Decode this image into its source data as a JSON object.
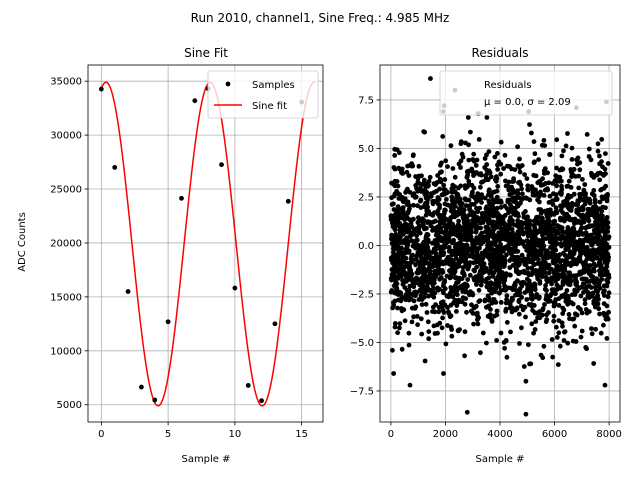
{
  "figure": {
    "suptitle": "Run 2010, channel1, Sine Freq.: 4.985 MHz"
  },
  "chart_data": [
    {
      "type": "line",
      "title": "Sine Fit",
      "xlabel": "Sample #",
      "ylabel": "ADC Counts",
      "xlim": [
        -1,
        16.6
      ],
      "ylim": [
        3400,
        36500
      ],
      "xticks": [
        0,
        5,
        10,
        15
      ],
      "yticks": [
        5000,
        10000,
        15000,
        20000,
        25000,
        30000,
        35000
      ],
      "grid": true,
      "legend": {
        "placement": "top-right",
        "entries": [
          "Samples",
          "Sine fit"
        ]
      },
      "series": [
        {
          "name": "Samples",
          "style": "scatter",
          "color": "#000000",
          "x": [
            0,
            1,
            2,
            3,
            4,
            5,
            6,
            7,
            8,
            9,
            10,
            11,
            12,
            13,
            14,
            15
          ],
          "y": [
            34270,
            27000,
            15500,
            6640,
            5440,
            12690,
            24140,
            33190,
            34310,
            27260,
            15820,
            6790,
            5380,
            12510,
            23860,
            33070
          ]
        },
        {
          "name": "Sine fit",
          "style": "line",
          "color": "#ff0000",
          "model": {
            "offset": 19900,
            "amplitude": 15000,
            "period": 7.8,
            "phase_deg": 74,
            "x_range": [
              0,
              16
            ]
          }
        }
      ]
    },
    {
      "type": "scatter",
      "title": "Residuals",
      "xlabel": "Sample #",
      "ylabel": "",
      "xlim": [
        -400,
        8400
      ],
      "ylim": [
        -9.1,
        9.3
      ],
      "xticks": [
        0,
        2000,
        4000,
        6000,
        8000
      ],
      "yticks": [
        -7.5,
        -5.0,
        -2.5,
        0.0,
        2.5,
        5.0,
        7.5
      ],
      "ytick_labels": [
        "−7.5",
        "−5.0",
        "−2.5",
        "0.0",
        "2.5",
        "5.0",
        "7.5"
      ],
      "grid": true,
      "legend": {
        "placement": "top-right",
        "entries": [
          "Residuals",
          "μ = 0.0, σ = 2.09"
        ]
      },
      "series": [
        {
          "name": "Residuals",
          "color": "#000000",
          "distribution": {
            "n": 8000,
            "mean": 0.0,
            "sigma": 2.09,
            "x_range": [
              0,
              8000
            ]
          },
          "outliers": [
            {
              "x": 1450,
              "y": 8.6
            },
            {
              "x": 1950,
              "y": 7.2
            },
            {
              "x": 2350,
              "y": 8.0
            },
            {
              "x": 1920,
              "y": 6.9
            },
            {
              "x": 3200,
              "y": 6.8
            },
            {
              "x": 5050,
              "y": 6.9
            },
            {
              "x": 6800,
              "y": 7.1
            },
            {
              "x": 7900,
              "y": 7.4
            },
            {
              "x": 2800,
              "y": -8.6
            },
            {
              "x": 4950,
              "y": -8.7
            },
            {
              "x": 100,
              "y": -6.6
            },
            {
              "x": 700,
              "y": -7.2
            },
            {
              "x": 4950,
              "y": -7.0
            },
            {
              "x": 7850,
              "y": -7.2
            }
          ]
        }
      ]
    }
  ]
}
